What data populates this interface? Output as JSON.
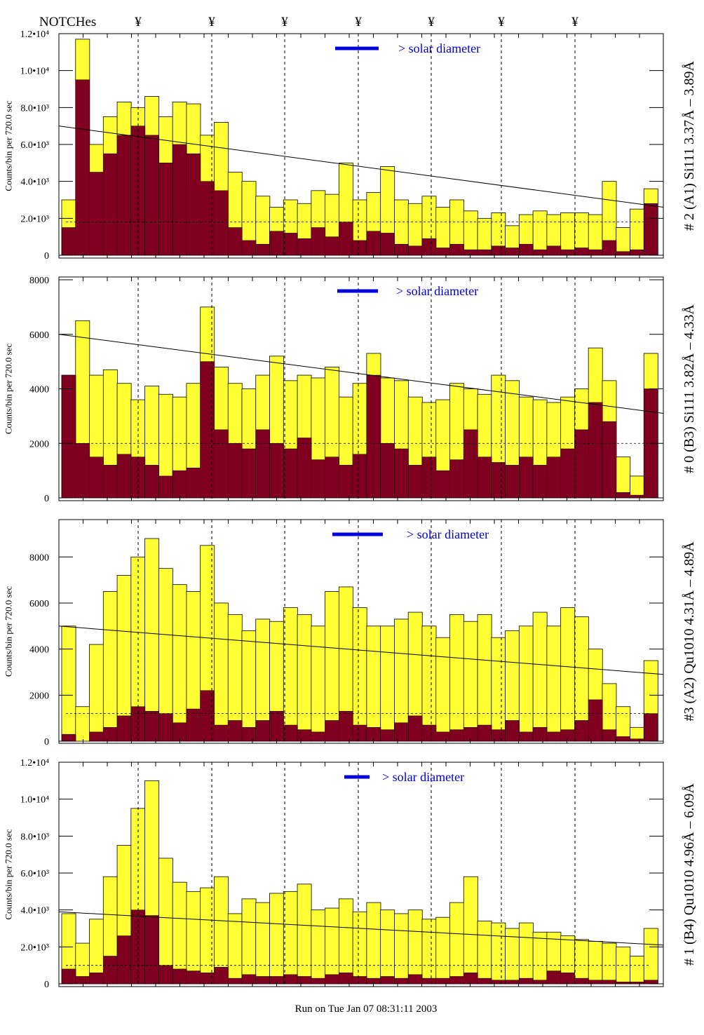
{
  "header": {
    "notches_label": "NOTCHes",
    "notch_symbol": "¥",
    "notch_count": 7
  },
  "footer": {
    "run_text": "Run on Tue Jan 07 08:31:11 2003"
  },
  "colors": {
    "fill_total": "#ffff33",
    "fill_sub": "#800020",
    "legend": "#0000dd"
  },
  "chart_data": [
    {
      "type": "bar",
      "title": "# 2 (A1) Si111  3.37Å – 3.89Å",
      "ylabel": "Counts/bin per   720.0 sec",
      "legend": "> solar diameter",
      "ylim": [
        0,
        12000
      ],
      "yticks": [
        "0",
        "2.0•10³",
        "4.0•10³",
        "6.0•10³",
        "8.0•10³",
        "1.0•10⁴",
        "1.2•10⁴"
      ],
      "ytick_values": [
        0,
        2000,
        4000,
        6000,
        8000,
        10000,
        12000
      ],
      "trend": [
        7000,
        2600
      ],
      "dashed": 1800,
      "total": [
        3000,
        11700,
        6000,
        7500,
        8300,
        8000,
        8600,
        7500,
        8300,
        8200,
        6500,
        7200,
        4500,
        4000,
        3200,
        2600,
        3000,
        2800,
        3500,
        3300,
        5000,
        3000,
        3400,
        4800,
        3000,
        2800,
        3200,
        2600,
        3000,
        2400,
        2000,
        2300,
        1600,
        2200,
        2400,
        2200,
        2300,
        2300,
        2200,
        4000,
        1500,
        2500,
        3600
      ],
      "sub": [
        1500,
        9500,
        4500,
        5500,
        6500,
        7000,
        6500,
        5000,
        6000,
        5500,
        4000,
        3500,
        1500,
        800,
        600,
        1300,
        1200,
        900,
        1500,
        1000,
        1800,
        800,
        1300,
        1200,
        600,
        500,
        900,
        400,
        600,
        300,
        300,
        500,
        400,
        600,
        300,
        500,
        300,
        400,
        300,
        800,
        200,
        300,
        2800
      ]
    },
    {
      "type": "bar",
      "title": "# 0 (B3) Si111  3.82Å – 4.33Å",
      "ylabel": "Counts/bin per   720.0 sec",
      "legend": "> solar diameter",
      "ylim": [
        0,
        8000
      ],
      "yticks": [
        "0",
        "2000",
        "4000",
        "6000",
        "8000"
      ],
      "ytick_values": [
        0,
        2000,
        4000,
        6000,
        8000
      ],
      "trend": [
        6000,
        3100
      ],
      "dashed": 2000,
      "total": [
        4500,
        6500,
        4500,
        4700,
        4200,
        3600,
        4100,
        3800,
        3700,
        4200,
        7000,
        4800,
        4200,
        4000,
        4500,
        5200,
        4300,
        4500,
        4400,
        4800,
        3700,
        4200,
        5300,
        4400,
        4300,
        3700,
        3500,
        3600,
        4200,
        4000,
        3800,
        4500,
        4300,
        3700,
        3600,
        3500,
        3700,
        4000,
        5500,
        4300,
        1500,
        800,
        5300
      ],
      "sub": [
        4500,
        2000,
        1500,
        1200,
        1600,
        1500,
        1200,
        800,
        1000,
        1100,
        5000,
        2500,
        2000,
        1800,
        2500,
        2000,
        1800,
        2200,
        1400,
        1500,
        1200,
        1600,
        4500,
        2000,
        1800,
        1200,
        1500,
        1000,
        1400,
        2500,
        1500,
        1300,
        1200,
        1500,
        1200,
        1500,
        1800,
        2500,
        3500,
        2800,
        200,
        100,
        4000
      ]
    },
    {
      "type": "bar",
      "title": "#3 (A2) Qu1010  4.31Å – 4.89Å",
      "ylabel": "Counts/bin per   720.0 sec",
      "legend": "> solar diameter",
      "ylim": [
        0,
        9500
      ],
      "yticks": [
        "0",
        "2000",
        "4000",
        "6000",
        "8000"
      ],
      "ytick_values": [
        0,
        2000,
        4000,
        6000,
        8000
      ],
      "trend": [
        5000,
        2900
      ],
      "dashed": 1200,
      "total": [
        5000,
        1500,
        4200,
        6500,
        7200,
        8000,
        8800,
        7500,
        6800,
        6500,
        8500,
        6000,
        5500,
        4800,
        5300,
        5200,
        5800,
        5500,
        5000,
        6500,
        6700,
        5800,
        5000,
        5000,
        5300,
        5600,
        5000,
        4500,
        5500,
        5200,
        5500,
        4500,
        4800,
        5000,
        5600,
        5000,
        5800,
        5400,
        4000,
        2500,
        1500,
        600,
        3500
      ],
      "sub": [
        300,
        0,
        400,
        600,
        1100,
        1500,
        1300,
        1200,
        800,
        1400,
        2200,
        700,
        900,
        600,
        900,
        1300,
        700,
        500,
        400,
        900,
        1300,
        700,
        600,
        500,
        800,
        1100,
        700,
        400,
        500,
        600,
        700,
        500,
        900,
        400,
        600,
        400,
        500,
        900,
        1800,
        500,
        200,
        100,
        1200
      ]
    },
    {
      "type": "bar",
      "title": "# 1 (B4) Qu1010 4.96Å – 6.09Å",
      "ylabel": "Counts/bin per   720.0 sec",
      "legend": "> solar diameter",
      "ylim": [
        0,
        12000
      ],
      "yticks": [
        "0",
        "2.0•10³",
        "4.0•10³",
        "6.0•10³",
        "8.0•10³",
        "1.0•10⁴",
        "1.2•10⁴"
      ],
      "ytick_values": [
        0,
        2000,
        4000,
        6000,
        8000,
        10000,
        12000
      ],
      "trend": [
        3900,
        2100
      ],
      "dashed": 1000,
      "total": [
        3800,
        2200,
        3500,
        5800,
        7500,
        9500,
        11000,
        6800,
        5500,
        5000,
        5200,
        5800,
        3800,
        4600,
        4400,
        4900,
        5000,
        5400,
        4000,
        4100,
        4600,
        3900,
        4400,
        4000,
        3800,
        4000,
        3500,
        3600,
        4400,
        5800,
        3400,
        3300,
        3000,
        3300,
        2800,
        2800,
        2600,
        2400,
        2300,
        2200,
        2000,
        1500,
        3000
      ],
      "sub": [
        800,
        400,
        600,
        1500,
        2600,
        4000,
        3700,
        1000,
        800,
        700,
        600,
        900,
        300,
        500,
        400,
        400,
        500,
        400,
        300,
        500,
        600,
        400,
        300,
        400,
        300,
        500,
        300,
        300,
        400,
        600,
        300,
        200,
        200,
        300,
        200,
        700,
        600,
        300,
        200,
        200,
        100,
        100,
        200
      ]
    }
  ]
}
